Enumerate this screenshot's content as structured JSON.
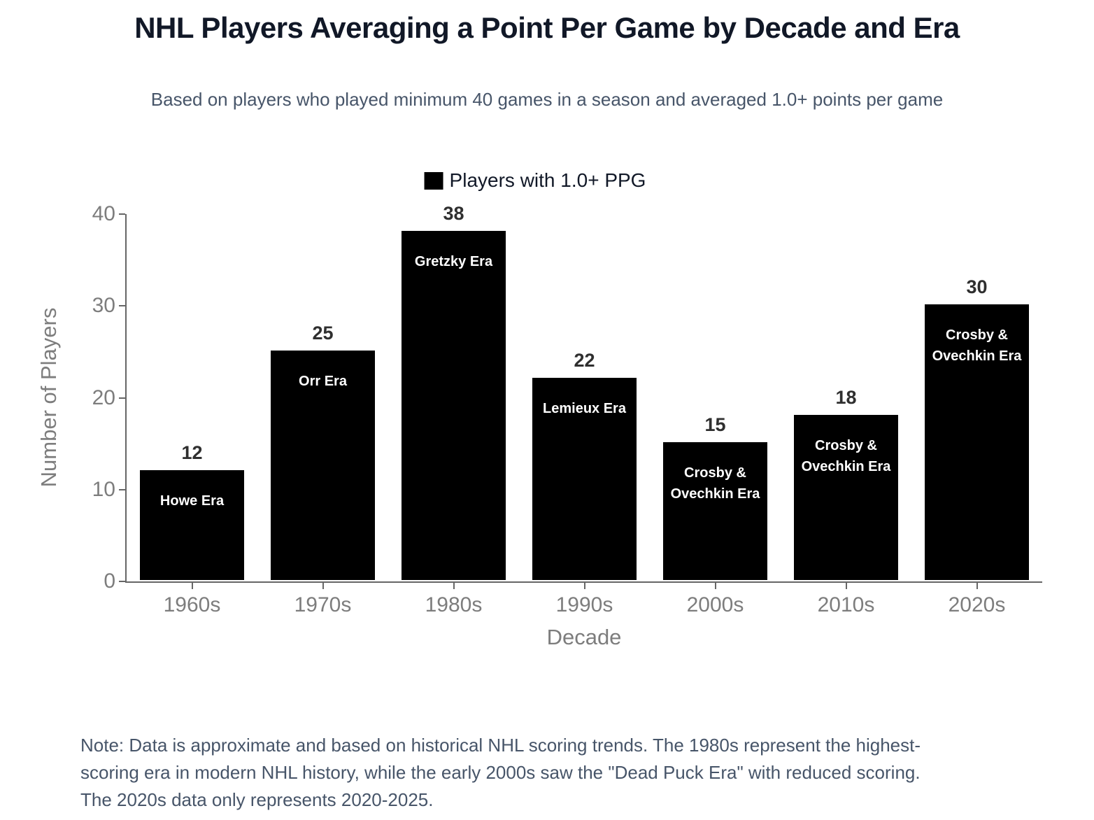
{
  "page": {
    "title": "NHL Players Averaging a Point Per Game by Decade and Era",
    "subtitle": "Based on players who played minimum 40 games in a season and averaged 1.0+ points per game",
    "note": "Note: Data is approximate and based on historical NHL scoring trends. The 1980s represent the highest-scoring era in modern NHL history, while the early 2000s saw the \"Dead Puck Era\" with reduced scoring. The 2020s data only represents 2020-2025."
  },
  "legend": {
    "label": "Players with 1.0+ PPG",
    "swatch_color": "#000000"
  },
  "chart_data": {
    "type": "bar",
    "title": "NHL Players Averaging a Point Per Game by Decade and Era",
    "subtitle": "Based on players who played minimum 40 games in a season and averaged 1.0+ points per game",
    "categories": [
      "1960s",
      "1970s",
      "1980s",
      "1990s",
      "2000s",
      "2010s",
      "2020s"
    ],
    "series": [
      {
        "name": "Players with 1.0+ PPG",
        "values": [
          12,
          25,
          38,
          22,
          15,
          18,
          30
        ]
      }
    ],
    "bar_era_labels": [
      "Howe Era",
      "Orr Era",
      "Gretzky Era",
      "Lemieux Era",
      "Crosby & Ovechkin Era",
      "Crosby & Ovechkin Era",
      "Crosby & Ovechkin Era"
    ],
    "xlabel": "Decade",
    "ylabel": "Number of Players",
    "ylim": [
      0,
      40
    ],
    "yticks": [
      0,
      10,
      20,
      30,
      40
    ],
    "bar_color": "#000000",
    "value_label_color": "#2f2f2f",
    "era_label_color": "#ffffff",
    "axis_text_color": "#7d7d7d",
    "grid": false,
    "legend_position": "top-center"
  }
}
